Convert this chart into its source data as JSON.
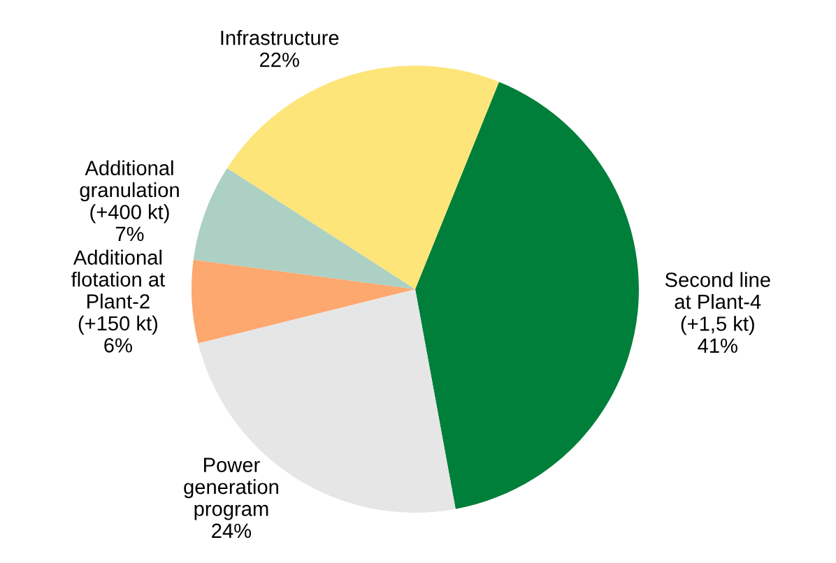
{
  "chart_data": {
    "type": "pie",
    "categories": [
      "Second line\nat Plant-4\n(+1,5 kt)",
      "Power\ngeneration\nprogram",
      "Additional\nflotation at\nPlant-2\n(+150 kt)",
      "Additional\ngranulation\n(+400 kt)",
      "Infrastructure"
    ],
    "values": [
      41,
      24,
      6,
      7,
      22
    ],
    "value_labels": [
      "41%",
      "24%",
      "6%",
      "7%",
      "22%"
    ],
    "colors": [
      "#007f3a",
      "#e6e6e6",
      "#fca86f",
      "#acd0c4",
      "#fde57a"
    ],
    "legend": false
  }
}
